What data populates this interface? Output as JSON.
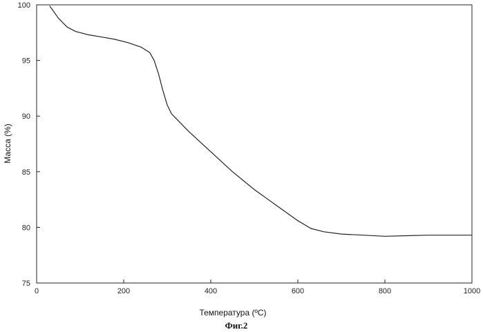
{
  "chart_data": {
    "type": "line",
    "title": "",
    "caption": "Фиг.2",
    "xlabel": "Температура (ºС)",
    "ylabel": "Масса (%)",
    "xlim": [
      0,
      1000
    ],
    "ylim": [
      75,
      100
    ],
    "xticks": [
      0,
      200,
      400,
      600,
      800,
      1000
    ],
    "yticks": [
      75,
      80,
      85,
      90,
      95,
      100
    ],
    "grid": false,
    "legend": "none",
    "line_color": "#222222",
    "series": [
      {
        "x": [
          30,
          50,
          70,
          90,
          120,
          150,
          180,
          210,
          240,
          260,
          270,
          280,
          290,
          300,
          310,
          320,
          350,
          400,
          450,
          500,
          550,
          600,
          630,
          660,
          700,
          750,
          800,
          850,
          900,
          950,
          1000
        ],
        "y": [
          99.9,
          98.8,
          98.0,
          97.6,
          97.3,
          97.1,
          96.9,
          96.6,
          96.2,
          95.7,
          95.0,
          93.8,
          92.3,
          91.0,
          90.2,
          89.8,
          88.6,
          86.8,
          85.0,
          83.4,
          82.0,
          80.6,
          79.9,
          79.6,
          79.4,
          79.3,
          79.2,
          79.25,
          79.3,
          79.3,
          79.3
        ]
      }
    ]
  }
}
